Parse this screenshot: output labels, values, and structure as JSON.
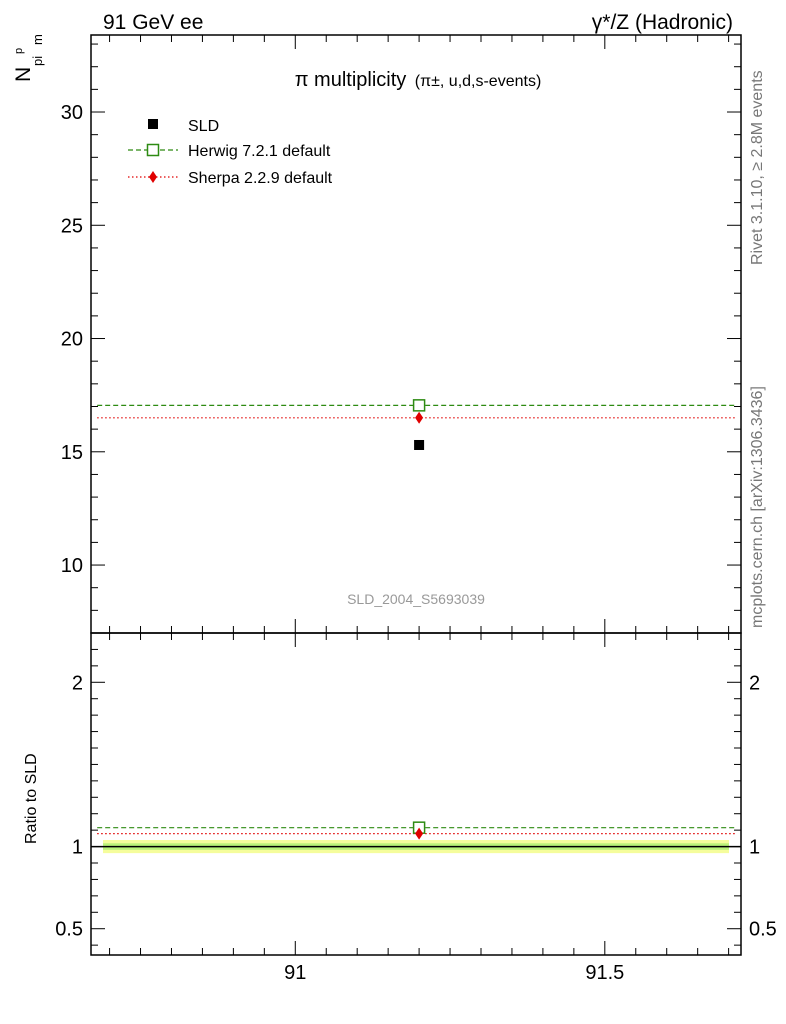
{
  "header": {
    "left": "91 GeV ee",
    "right": "γ*/Z (Hadronic)"
  },
  "side_labels": {
    "rivet": "Rivet 3.1.10, ≥ 2.8M events",
    "mcplots": "mcplots.cern.ch [arXiv:1306.3436]"
  },
  "chart_data": {
    "type": "scatter",
    "title_main": "π multiplicity",
    "title_sub": "(π±, u,d,s-events)",
    "ylabel": "N",
    "ylabel_sub": "pi",
    "ylabel_sup": "p",
    "ylabel_sub2": "m",
    "analysis_id": "SLD_2004_S5693039",
    "xlim": [
      90.67,
      91.72
    ],
    "ylim": [
      7,
      33.4
    ],
    "x_ticks": [
      91,
      91.5
    ],
    "x_tick_labels": [
      "91",
      "91.5"
    ],
    "y_ticks": [
      10,
      15,
      20,
      25,
      30
    ],
    "y_tick_labels": [
      "10",
      "15",
      "20",
      "25",
      "30"
    ],
    "legend_placement": "top-left",
    "series": [
      {
        "name": "SLD",
        "style": "data",
        "color": "#000000",
        "x": 91.2,
        "y": 15.3
      },
      {
        "name": "Herwig 7.2.1 default",
        "style": "line-dashed-open-square",
        "color": "#2e8b12",
        "x_range": [
          90.68,
          91.71
        ],
        "x": 91.2,
        "y": 17.05
      },
      {
        "name": "Sherpa 2.2.9 default",
        "style": "line-dotted-diamond",
        "color": "#e00000",
        "x_range": [
          90.68,
          91.71
        ],
        "x": 91.2,
        "y": 16.5
      }
    ],
    "ratio": {
      "ylabel": "Ratio to SLD",
      "ylim": [
        0.34,
        2.3
      ],
      "y_ticks": [
        0.5,
        1,
        2
      ],
      "y_tick_labels": [
        "0.5",
        "1",
        "2"
      ],
      "reference": 1.0,
      "band_outer": [
        0.96,
        1.04
      ],
      "band_inner": [
        0.98,
        1.02
      ],
      "band_outer_color": "#f5fd9c",
      "band_inner_color": "#b9f27a",
      "values": [
        {
          "name": "Herwig 7.2.1 default",
          "y": 1.115
        },
        {
          "name": "Sherpa 2.2.9 default",
          "y": 1.079
        }
      ]
    }
  }
}
